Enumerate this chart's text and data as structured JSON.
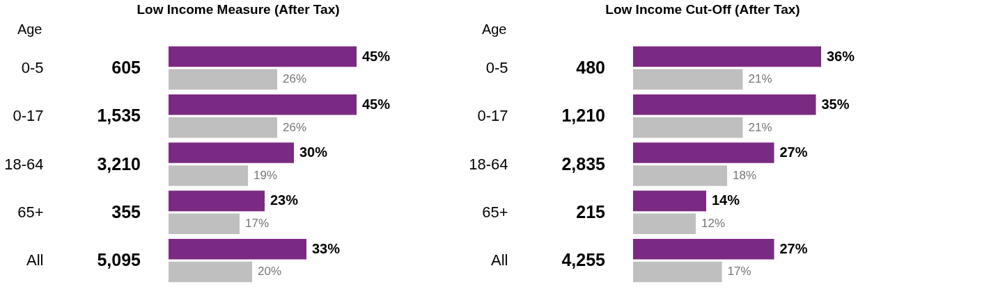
{
  "chart_data": [
    {
      "type": "bar",
      "orientation": "horizontal",
      "title": "Low Income Measure (After Tax)",
      "ylabel": "Age",
      "categories": [
        "0-5",
        "0-17",
        "18-64",
        "65+",
        "All"
      ],
      "legend": false,
      "series": [
        {
          "color": "#7b2a83",
          "values": [
            45,
            45,
            30,
            23,
            33
          ],
          "value_labels": [
            "45%",
            "45%",
            "30%",
            "23%",
            "33%"
          ]
        },
        {
          "color": "#bfbfbf",
          "values": [
            26,
            26,
            19,
            17,
            20
          ],
          "value_labels": [
            "26%",
            "26%",
            "19%",
            "17%",
            "20%"
          ]
        }
      ],
      "annotations": [
        "605",
        "1,535",
        "3,210",
        "355",
        "5,095"
      ]
    },
    {
      "type": "bar",
      "orientation": "horizontal",
      "title": "Low Income Cut-Off (After Tax)",
      "ylabel": "Age",
      "categories": [
        "0-5",
        "0-17",
        "18-64",
        "65+",
        "All"
      ],
      "legend": false,
      "series": [
        {
          "color": "#7b2a83",
          "values": [
            36,
            35,
            27,
            14,
            27
          ],
          "value_labels": [
            "36%",
            "35%",
            "27%",
            "14%",
            "27%"
          ]
        },
        {
          "color": "#bfbfbf",
          "values": [
            21,
            21,
            18,
            12,
            17
          ],
          "value_labels": [
            "21%",
            "21%",
            "18%",
            "12%",
            "17%"
          ]
        }
      ],
      "annotations": [
        "480",
        "1,210",
        "2,835",
        "215",
        "4,255"
      ]
    }
  ]
}
